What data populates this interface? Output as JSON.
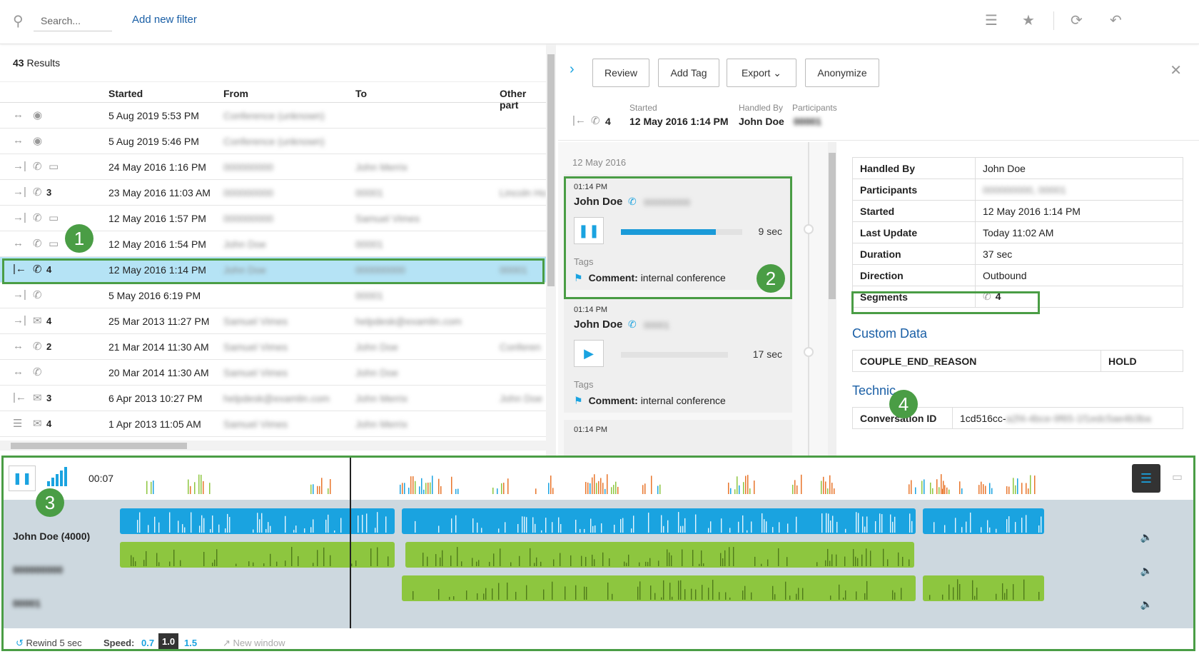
{
  "topbar": {
    "search_placeholder": "Search...",
    "add_filter": "Add new filter"
  },
  "results": {
    "count": "43",
    "count_label": "Results",
    "columns": [
      "Started",
      "From",
      "To",
      "Other part"
    ],
    "rows": [
      {
        "direction": "↔",
        "type": "conference",
        "count": "",
        "started": "5 Aug 2019 5:53 PM",
        "from": "Conference (unknown)",
        "to": "",
        "other": ""
      },
      {
        "direction": "↔",
        "type": "conference",
        "count": "",
        "started": "5 Aug 2019 5:46 PM",
        "from": "Conference (unknown)",
        "to": "",
        "other": ""
      },
      {
        "direction": "→|",
        "type": "phone-screen",
        "count": "",
        "started": "24 May 2016 1:16 PM",
        "from": "000000000",
        "to": "John Merrix",
        "other": ""
      },
      {
        "direction": "→|",
        "type": "phone",
        "count": "3",
        "started": "23 May 2016 11:03 AM",
        "from": "000000000",
        "to": "00001",
        "other": "Lincoln Ho"
      },
      {
        "direction": "→|",
        "type": "phone-screen",
        "count": "",
        "started": "12 May 2016 1:57 PM",
        "from": "000000000",
        "to": "Samuel Vimes",
        "other": ""
      },
      {
        "direction": "↔",
        "type": "phone-screen",
        "count": "",
        "started": "12 May 2016 1:54 PM",
        "from": "John Doe",
        "to": "00001",
        "other": ""
      },
      {
        "direction": "|←",
        "type": "phone",
        "count": "4",
        "started": "12 May 2016 1:14 PM",
        "from": "John Doe",
        "to": "000000000",
        "other": "00001",
        "selected": true
      },
      {
        "direction": "→|",
        "type": "phone",
        "count": "",
        "started": "5 May 2016 6:19 PM",
        "from": "",
        "to": "00001",
        "other": ""
      },
      {
        "direction": "→|",
        "type": "email",
        "count": "4",
        "started": "25 Mar 2013 11:27 PM",
        "from": "Samuel Vimes",
        "to": "helpdesk@examlin.com",
        "other": ""
      },
      {
        "direction": "↔",
        "type": "phone",
        "count": "2",
        "started": "21 Mar 2014 11:30 AM",
        "from": "Samuel Vimes",
        "to": "John Doe",
        "other": "Conferen"
      },
      {
        "direction": "↔",
        "type": "phone",
        "count": "",
        "started": "20 Mar 2014 11:30 AM",
        "from": "Samuel Vimes",
        "to": "John Doe",
        "other": ""
      },
      {
        "direction": "|←",
        "type": "email",
        "count": "3",
        "started": "6 Apr 2013 10:27 PM",
        "from": "helpdesk@examlin.com",
        "to": "John Merrix",
        "other": "John Doe"
      },
      {
        "direction": "☰",
        "type": "chat",
        "count": "4",
        "started": "1 Apr 2013 11:05 AM",
        "from": "Samuel Vimes",
        "to": "John Merrix",
        "other": ""
      }
    ]
  },
  "detail": {
    "buttons": {
      "review": "Review",
      "add_tag": "Add Tag",
      "export": "Export",
      "anonymize": "Anonymize"
    },
    "header": {
      "count": "4",
      "started_label": "Started",
      "started": "12 May 2016 1:14 PM",
      "handled_label": "Handled By",
      "handled": "John Doe",
      "participants_label": "Participants",
      "participants": "00001"
    },
    "segment_date": "12 May 2016",
    "segments": [
      {
        "time": "01:14 PM",
        "name": "John Doe",
        "other": "000000000",
        "duration": "9 sec",
        "progress": 0.78,
        "tags_label": "Tags",
        "tag_key": "Comment:",
        "tag_val": "internal conference"
      },
      {
        "time": "01:14 PM",
        "name": "John Doe",
        "other": "00001",
        "duration": "17 sec",
        "progress": 0,
        "tags_label": "Tags",
        "tag_key": "Comment:",
        "tag_val": "internal conference"
      },
      {
        "time": "01:14 PM"
      }
    ],
    "props": [
      {
        "k": "Handled By",
        "v": "John Doe"
      },
      {
        "k": "Participants",
        "v": "000000000, 00001"
      },
      {
        "k": "Started",
        "v": "12 May 2016 1:14 PM"
      },
      {
        "k": "Last Update",
        "v": "Today 11:02 AM"
      },
      {
        "k": "Duration",
        "v": "37 sec"
      },
      {
        "k": "Direction",
        "v": "Outbound"
      },
      {
        "k": "Segments",
        "v": "4"
      }
    ],
    "custom_title": "Custom Data",
    "custom": {
      "k": "COUPLE_END_REASON",
      "v": "HOLD"
    },
    "tech_title": "Technic",
    "tech": {
      "k": "Conversation ID",
      "v": "1cd516cc-",
      "v_hidden": "a2f4-4bce-9f65-1f1edc5ae4b3ba"
    }
  },
  "player": {
    "time": "00:07",
    "tracks": [
      {
        "label": "John Doe (4000)"
      },
      {
        "label": "000000000"
      },
      {
        "label": "00001"
      }
    ],
    "rewind": "Rewind 5 sec",
    "speed_label": "Speed:",
    "speeds": [
      "0.7",
      "1.0",
      "1.5"
    ],
    "new_window": "New window"
  },
  "markers": [
    "1",
    "2",
    "3",
    "4"
  ],
  "colors": {
    "accent": "#1aa3e0",
    "green": "#8dc63f",
    "highlight": "#4a9d45",
    "selected_row": "#b5e3f5"
  }
}
